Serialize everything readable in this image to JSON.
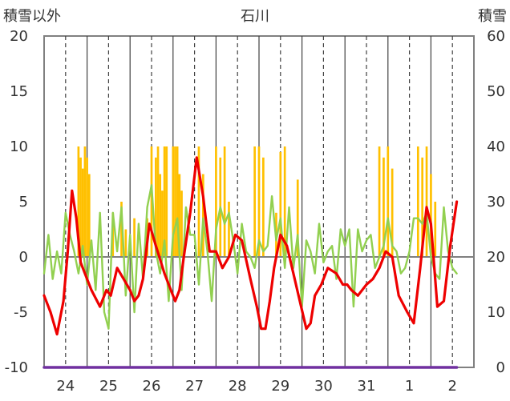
{
  "chart_data": {
    "type": "line",
    "title": "石川",
    "ylabel_left": "積雪以外",
    "ylabel_right": "積雪",
    "x_categories": [
      "24",
      "25",
      "26",
      "27",
      "28",
      "29",
      "30",
      "31",
      "1",
      "2"
    ],
    "left_axis": {
      "min": -10,
      "max": 20,
      "ticks": [
        20,
        15,
        10,
        5,
        0,
        -5,
        -10
      ]
    },
    "right_axis": {
      "min": 0,
      "max": 60,
      "ticks": [
        60,
        50,
        40,
        30,
        20,
        10,
        0
      ]
    },
    "grid": "dashed vertical lines at day centers, solid vertical lines at day boundaries",
    "colors": {
      "red_series": "#ee0000",
      "green_series": "#92d050",
      "bars": "#ffc000",
      "purple_series": "#7030a0",
      "zero_line": "#808080"
    },
    "series": [
      {
        "color": "#ee0000",
        "axis": "left",
        "x": [
          0.0,
          0.15,
          0.3,
          0.45,
          0.55,
          0.65,
          0.75,
          0.85,
          0.95,
          1.1,
          1.3,
          1.45,
          1.55,
          1.7,
          1.85,
          2.0,
          2.1,
          2.2,
          2.3,
          2.45,
          2.6,
          2.8,
          2.95,
          3.05,
          3.15,
          3.25,
          3.4,
          3.55,
          3.7,
          3.85,
          4.0,
          4.15,
          4.3,
          4.45,
          4.6,
          4.8,
          4.95,
          5.05,
          5.15,
          5.25,
          5.35,
          5.5,
          5.65,
          5.8,
          5.95,
          6.1,
          6.2,
          6.3,
          6.45,
          6.6,
          6.8,
          6.95,
          7.05,
          7.15,
          7.3,
          7.5,
          7.65,
          7.8,
          7.95,
          8.1,
          8.25,
          8.45,
          8.6,
          8.75,
          8.9,
          9.0,
          9.15,
          9.3,
          9.45,
          9.6
        ],
        "y": [
          -3.5,
          -5.0,
          -7.0,
          -4.0,
          0.5,
          6.0,
          3.5,
          -0.5,
          -1.5,
          -3.0,
          -4.5,
          -3.0,
          -3.5,
          -1.0,
          -2.0,
          -3.0,
          -4.0,
          -3.5,
          -2.0,
          3.0,
          1.0,
          -1.5,
          -3.0,
          -4.0,
          -3.0,
          0.0,
          4.0,
          9.0,
          5.5,
          0.5,
          0.5,
          -1.0,
          0.0,
          2.0,
          1.5,
          -2.0,
          -4.5,
          -6.5,
          -6.5,
          -4.0,
          -1.0,
          2.0,
          1.0,
          -1.5,
          -4.0,
          -6.5,
          -6.0,
          -3.5,
          -2.5,
          -1.0,
          -1.5,
          -2.5,
          -2.5,
          -3.0,
          -3.5,
          -2.5,
          -2.0,
          -1.0,
          0.5,
          0.0,
          -3.5,
          -5.0,
          -6.0,
          -1.0,
          4.5,
          3.0,
          -4.5,
          -4.0,
          1.0,
          5.0
        ]
      },
      {
        "color": "#92d050",
        "axis": "left",
        "x": [
          0.0,
          0.1,
          0.2,
          0.3,
          0.4,
          0.5,
          0.6,
          0.7,
          0.8,
          0.9,
          1.0,
          1.1,
          1.2,
          1.3,
          1.4,
          1.5,
          1.6,
          1.7,
          1.8,
          1.9,
          2.0,
          2.1,
          2.2,
          2.3,
          2.4,
          2.5,
          2.6,
          2.7,
          2.8,
          2.9,
          3.0,
          3.1,
          3.2,
          3.3,
          3.4,
          3.5,
          3.6,
          3.7,
          3.8,
          3.9,
          4.0,
          4.1,
          4.2,
          4.3,
          4.4,
          4.5,
          4.6,
          4.7,
          4.8,
          4.9,
          5.0,
          5.1,
          5.2,
          5.3,
          5.4,
          5.5,
          5.6,
          5.7,
          5.8,
          5.9,
          6.0,
          6.1,
          6.2,
          6.3,
          6.4,
          6.5,
          6.6,
          6.7,
          6.8,
          6.9,
          7.0,
          7.1,
          7.2,
          7.3,
          7.4,
          7.5,
          7.6,
          7.7,
          7.8,
          7.9,
          8.0,
          8.1,
          8.2,
          8.3,
          8.4,
          8.5,
          8.6,
          8.7,
          8.8,
          8.9,
          9.0,
          9.1,
          9.2,
          9.3,
          9.4,
          9.5,
          9.6
        ],
        "y": [
          -1.5,
          2.0,
          -2.0,
          0.5,
          -1.5,
          4.0,
          2.0,
          0.5,
          -1.5,
          1.0,
          -2.5,
          1.5,
          -3.0,
          4.0,
          -5.0,
          -6.5,
          4.0,
          0.5,
          4.5,
          -3.5,
          2.0,
          -5.0,
          3.0,
          -2.0,
          4.5,
          6.5,
          0.5,
          -1.5,
          1.5,
          -4.0,
          2.0,
          3.5,
          -3.0,
          4.5,
          2.0,
          2.0,
          -2.5,
          3.5,
          0.5,
          -4.0,
          2.5,
          4.5,
          3.0,
          4.0,
          1.5,
          -1.5,
          3.0,
          0.5,
          0.0,
          -1.0,
          1.5,
          0.5,
          1.0,
          5.5,
          1.5,
          3.5,
          -1.0,
          4.5,
          -1.0,
          2.0,
          -4.5,
          1.5,
          0.5,
          -1.5,
          3.0,
          -0.5,
          0.5,
          1.0,
          -2.0,
          2.5,
          1.0,
          2.5,
          -4.5,
          2.5,
          0.5,
          1.5,
          2.0,
          -1.0,
          0.0,
          1.0,
          3.5,
          1.0,
          0.5,
          -1.5,
          -1.0,
          0.5,
          3.5,
          3.5,
          3.0,
          4.0,
          0.0,
          -1.5,
          -2.0,
          4.5,
          0.5,
          -1.0,
          -1.5
        ]
      },
      {
        "color": "#ffc000",
        "axis": "right",
        "type": "bar",
        "x": [
          0.8,
          0.85,
          0.9,
          0.95,
          1.0,
          1.05,
          1.1,
          1.2,
          1.3,
          1.4,
          1.5,
          1.6,
          1.7,
          1.8,
          1.9,
          2.0,
          2.1,
          2.2,
          2.3,
          2.4,
          2.5,
          2.6,
          2.65,
          2.7,
          2.75,
          2.8,
          2.85,
          3.0,
          3.05,
          3.1,
          3.15,
          3.2,
          3.3,
          3.4,
          3.5,
          3.6,
          3.7,
          3.8,
          3.9,
          4.0,
          4.1,
          4.2,
          4.3,
          4.4,
          4.5,
          4.6,
          4.7,
          4.8,
          4.9,
          5.0,
          5.1,
          5.2,
          5.3,
          5.4,
          5.5,
          5.6,
          5.7,
          5.8,
          5.9,
          6.0,
          6.1,
          6.2,
          6.3,
          6.4,
          6.5,
          6.6,
          6.7,
          6.8,
          6.9,
          7.0,
          7.1,
          7.2,
          7.3,
          7.4,
          7.5,
          7.6,
          7.7,
          7.8,
          7.9,
          8.0,
          8.1,
          8.2,
          8.3,
          8.4,
          8.5,
          8.6,
          8.7,
          8.8,
          8.9,
          9.0,
          9.1,
          9.2,
          9.3,
          9.4,
          9.5,
          9.6
        ],
        "y": [
          40,
          38,
          36,
          40,
          38,
          35,
          20,
          20,
          20,
          20,
          20,
          28,
          20,
          30,
          25,
          20,
          27,
          20,
          20,
          27,
          40,
          38,
          40,
          35,
          32,
          40,
          40,
          40,
          40,
          40,
          35,
          32,
          20,
          20,
          20,
          40,
          35,
          20,
          20,
          40,
          38,
          40,
          30,
          20,
          20,
          20,
          20,
          20,
          40,
          40,
          38,
          20,
          20,
          28,
          39,
          40,
          20,
          20,
          34,
          20,
          20,
          20,
          20,
          20,
          20,
          20,
          20,
          20,
          20,
          20,
          20,
          20,
          20,
          20,
          20,
          20,
          20,
          40,
          38,
          40,
          36,
          20,
          20,
          20,
          20,
          20,
          40,
          38,
          40,
          35,
          30,
          20,
          20,
          20,
          20,
          20
        ]
      },
      {
        "color": "#7030a0",
        "axis": "left",
        "x": [
          0.0,
          9.6
        ],
        "y": [
          -10,
          -10
        ]
      }
    ]
  }
}
